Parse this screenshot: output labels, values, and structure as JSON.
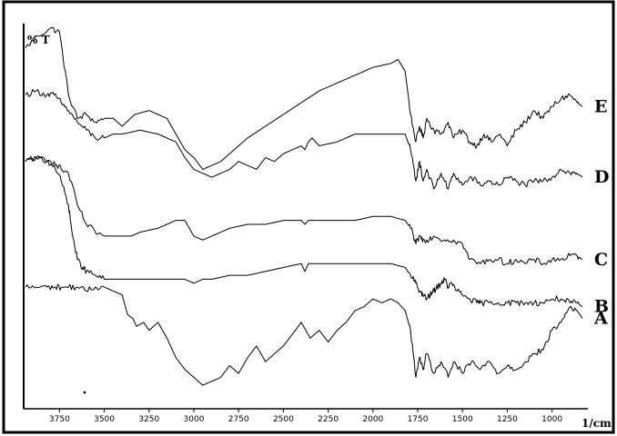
{
  "chart_data": {
    "type": "line",
    "title": "",
    "xlabel": "1/cm",
    "ylabel": "% T",
    "x_reversed": true,
    "xlim": [
      3950,
      800
    ],
    "x_ticks": [
      3750,
      3500,
      3250,
      3000,
      2750,
      2500,
      2250,
      2000,
      1750,
      1500,
      1250,
      1000
    ],
    "x_tick_labels": [
      "3750",
      "3500",
      "3250",
      "3000",
      "2750",
      "2500",
      "2250",
      "2000",
      "1750",
      "1500",
      "1250",
      "1000"
    ],
    "ylim": [
      0,
      100
    ],
    "grid": false,
    "legend": "labels at right end of each trace",
    "series": [
      {
        "name": "E",
        "color": "#000000",
        "points": [
          [
            3940,
            92
          ],
          [
            3870,
            95
          ],
          [
            3800,
            97
          ],
          [
            3750,
            96
          ],
          [
            3700,
            80
          ],
          [
            3650,
            74
          ],
          [
            3600,
            75
          ],
          [
            3550,
            73
          ],
          [
            3500,
            74
          ],
          [
            3450,
            74
          ],
          [
            3400,
            72
          ],
          [
            3330,
            75
          ],
          [
            3250,
            76
          ],
          [
            3150,
            74
          ],
          [
            3050,
            66
          ],
          [
            3000,
            64
          ],
          [
            2950,
            61
          ],
          [
            2900,
            62
          ],
          [
            2850,
            63
          ],
          [
            2800,
            65
          ],
          [
            2750,
            67
          ],
          [
            2700,
            69
          ],
          [
            2600,
            72
          ],
          [
            2500,
            75
          ],
          [
            2400,
            78
          ],
          [
            2300,
            81
          ],
          [
            2200,
            83
          ],
          [
            2100,
            85
          ],
          [
            2000,
            87
          ],
          [
            1900,
            88
          ],
          [
            1860,
            89
          ],
          [
            1820,
            86
          ],
          [
            1790,
            75
          ],
          [
            1760,
            68
          ],
          [
            1740,
            72
          ],
          [
            1720,
            69
          ],
          [
            1700,
            74
          ],
          [
            1660,
            71
          ],
          [
            1620,
            70
          ],
          [
            1580,
            73
          ],
          [
            1550,
            69
          ],
          [
            1500,
            71
          ],
          [
            1460,
            68
          ],
          [
            1420,
            67
          ],
          [
            1380,
            70
          ],
          [
            1340,
            68
          ],
          [
            1290,
            70
          ],
          [
            1250,
            67
          ],
          [
            1200,
            71
          ],
          [
            1150,
            73
          ],
          [
            1100,
            76
          ],
          [
            1050,
            74
          ],
          [
            1000,
            77
          ],
          [
            950,
            79
          ],
          [
            900,
            80
          ],
          [
            860,
            78
          ],
          [
            830,
            77
          ]
        ]
      },
      {
        "name": "D",
        "color": "#000000",
        "points": [
          [
            3940,
            80
          ],
          [
            3880,
            81
          ],
          [
            3820,
            80
          ],
          [
            3780,
            80
          ],
          [
            3740,
            78
          ],
          [
            3700,
            76
          ],
          [
            3650,
            73
          ],
          [
            3600,
            71
          ],
          [
            3550,
            69
          ],
          [
            3500,
            69
          ],
          [
            3450,
            70
          ],
          [
            3400,
            70
          ],
          [
            3300,
            71
          ],
          [
            3200,
            70
          ],
          [
            3100,
            68
          ],
          [
            3050,
            64
          ],
          [
            3000,
            61
          ],
          [
            2950,
            60
          ],
          [
            2900,
            59
          ],
          [
            2850,
            60
          ],
          [
            2800,
            61
          ],
          [
            2750,
            63
          ],
          [
            2700,
            62
          ],
          [
            2650,
            61
          ],
          [
            2600,
            64
          ],
          [
            2550,
            63
          ],
          [
            2500,
            65
          ],
          [
            2450,
            66
          ],
          [
            2400,
            67
          ],
          [
            2380,
            66
          ],
          [
            2360,
            68
          ],
          [
            2340,
            69
          ],
          [
            2300,
            67
          ],
          [
            2200,
            68
          ],
          [
            2100,
            70
          ],
          [
            2000,
            70
          ],
          [
            1900,
            70
          ],
          [
            1820,
            70
          ],
          [
            1790,
            66
          ],
          [
            1760,
            58
          ],
          [
            1740,
            63
          ],
          [
            1720,
            58
          ],
          [
            1700,
            61
          ],
          [
            1660,
            56
          ],
          [
            1620,
            60
          ],
          [
            1580,
            56
          ],
          [
            1550,
            60
          ],
          [
            1500,
            57
          ],
          [
            1450,
            59
          ],
          [
            1400,
            57
          ],
          [
            1350,
            58
          ],
          [
            1300,
            57
          ],
          [
            1250,
            59
          ],
          [
            1200,
            58
          ],
          [
            1150,
            57
          ],
          [
            1100,
            58
          ],
          [
            1050,
            58
          ],
          [
            1000,
            59
          ],
          [
            950,
            61
          ],
          [
            900,
            60
          ],
          [
            860,
            60
          ],
          [
            830,
            59
          ]
        ]
      },
      {
        "name": "C",
        "color": "#000000",
        "points": [
          [
            3940,
            63
          ],
          [
            3880,
            64
          ],
          [
            3820,
            63
          ],
          [
            3780,
            63
          ],
          [
            3740,
            61
          ],
          [
            3700,
            60
          ],
          [
            3650,
            52
          ],
          [
            3600,
            47
          ],
          [
            3550,
            45
          ],
          [
            3500,
            44
          ],
          [
            3450,
            44
          ],
          [
            3400,
            44
          ],
          [
            3350,
            44
          ],
          [
            3300,
            45
          ],
          [
            3200,
            46
          ],
          [
            3100,
            48
          ],
          [
            3050,
            48
          ],
          [
            3000,
            44
          ],
          [
            2950,
            43
          ],
          [
            2900,
            44
          ],
          [
            2850,
            45
          ],
          [
            2800,
            46
          ],
          [
            2700,
            47
          ],
          [
            2600,
            47
          ],
          [
            2500,
            48
          ],
          [
            2400,
            48
          ],
          [
            2380,
            47
          ],
          [
            2360,
            48
          ],
          [
            2300,
            48
          ],
          [
            2200,
            48
          ],
          [
            2100,
            48
          ],
          [
            2000,
            49
          ],
          [
            1900,
            49
          ],
          [
            1820,
            48
          ],
          [
            1790,
            46
          ],
          [
            1760,
            42
          ],
          [
            1740,
            44
          ],
          [
            1720,
            43
          ],
          [
            1700,
            43
          ],
          [
            1660,
            44
          ],
          [
            1600,
            43
          ],
          [
            1550,
            43
          ],
          [
            1500,
            42
          ],
          [
            1460,
            38
          ],
          [
            1400,
            37
          ],
          [
            1350,
            38
          ],
          [
            1300,
            38
          ],
          [
            1250,
            37
          ],
          [
            1200,
            38
          ],
          [
            1150,
            37
          ],
          [
            1100,
            38
          ],
          [
            1050,
            37
          ],
          [
            1000,
            38
          ],
          [
            950,
            38
          ],
          [
            900,
            39
          ],
          [
            860,
            39
          ],
          [
            830,
            38
          ]
        ]
      },
      {
        "name": "B",
        "color": "#000000",
        "points": [
          [
            3940,
            63
          ],
          [
            3880,
            64
          ],
          [
            3820,
            63
          ],
          [
            3780,
            62
          ],
          [
            3740,
            58
          ],
          [
            3700,
            52
          ],
          [
            3680,
            45
          ],
          [
            3650,
            38
          ],
          [
            3620,
            36
          ],
          [
            3600,
            35
          ],
          [
            3550,
            34
          ],
          [
            3500,
            33
          ],
          [
            3450,
            33
          ],
          [
            3400,
            33
          ],
          [
            3300,
            33
          ],
          [
            3200,
            33
          ],
          [
            3100,
            33
          ],
          [
            3050,
            33
          ],
          [
            3000,
            32
          ],
          [
            2950,
            33
          ],
          [
            2900,
            33
          ],
          [
            2800,
            34
          ],
          [
            2700,
            34
          ],
          [
            2600,
            35
          ],
          [
            2500,
            36
          ],
          [
            2400,
            37
          ],
          [
            2380,
            35
          ],
          [
            2360,
            37
          ],
          [
            2300,
            37
          ],
          [
            2200,
            37
          ],
          [
            2100,
            37
          ],
          [
            2000,
            37
          ],
          [
            1900,
            37
          ],
          [
            1820,
            36
          ],
          [
            1790,
            34
          ],
          [
            1760,
            32
          ],
          [
            1740,
            30
          ],
          [
            1720,
            29
          ],
          [
            1700,
            28
          ],
          [
            1680,
            29
          ],
          [
            1660,
            30
          ],
          [
            1640,
            31
          ],
          [
            1620,
            32
          ],
          [
            1600,
            33
          ],
          [
            1580,
            31
          ],
          [
            1560,
            32
          ],
          [
            1530,
            30
          ],
          [
            1500,
            29
          ],
          [
            1460,
            28
          ],
          [
            1420,
            27
          ],
          [
            1400,
            27
          ],
          [
            1350,
            27
          ],
          [
            1300,
            27
          ],
          [
            1250,
            27
          ],
          [
            1200,
            27
          ],
          [
            1150,
            27
          ],
          [
            1100,
            27
          ],
          [
            1050,
            27
          ],
          [
            1000,
            28
          ],
          [
            950,
            28
          ],
          [
            900,
            27
          ],
          [
            860,
            27
          ],
          [
            830,
            26
          ]
        ]
      },
      {
        "name": "A",
        "color": "#000000",
        "points": [
          [
            3940,
            31
          ],
          [
            3880,
            31
          ],
          [
            3820,
            31
          ],
          [
            3780,
            31
          ],
          [
            3740,
            31
          ],
          [
            3700,
            31
          ],
          [
            3650,
            31
          ],
          [
            3600,
            30
          ],
          [
            3550,
            31
          ],
          [
            3500,
            31
          ],
          [
            3450,
            30
          ],
          [
            3400,
            29
          ],
          [
            3370,
            24
          ],
          [
            3340,
            23
          ],
          [
            3320,
            21
          ],
          [
            3280,
            22
          ],
          [
            3250,
            20
          ],
          [
            3200,
            22
          ],
          [
            3150,
            18
          ],
          [
            3100,
            13
          ],
          [
            3050,
            10
          ],
          [
            3000,
            8
          ],
          [
            2950,
            6
          ],
          [
            2900,
            7
          ],
          [
            2850,
            8
          ],
          [
            2800,
            11
          ],
          [
            2750,
            9
          ],
          [
            2700,
            13
          ],
          [
            2650,
            16
          ],
          [
            2600,
            12
          ],
          [
            2550,
            14
          ],
          [
            2500,
            16
          ],
          [
            2450,
            19
          ],
          [
            2400,
            22
          ],
          [
            2350,
            18
          ],
          [
            2300,
            20
          ],
          [
            2250,
            17
          ],
          [
            2200,
            20
          ],
          [
            2150,
            22
          ],
          [
            2100,
            25
          ],
          [
            2050,
            26
          ],
          [
            2000,
            28
          ],
          [
            1950,
            27
          ],
          [
            1900,
            28
          ],
          [
            1860,
            27
          ],
          [
            1820,
            25
          ],
          [
            1790,
            20
          ],
          [
            1760,
            8
          ],
          [
            1740,
            13
          ],
          [
            1720,
            10
          ],
          [
            1700,
            14
          ],
          [
            1660,
            9
          ],
          [
            1620,
            12
          ],
          [
            1580,
            8
          ],
          [
            1550,
            12
          ],
          [
            1500,
            9
          ],
          [
            1450,
            12
          ],
          [
            1400,
            10
          ],
          [
            1350,
            12
          ],
          [
            1300,
            9
          ],
          [
            1250,
            11
          ],
          [
            1200,
            10
          ],
          [
            1150,
            12
          ],
          [
            1100,
            14
          ],
          [
            1050,
            15
          ],
          [
            1000,
            20
          ],
          [
            950,
            22
          ],
          [
            900,
            26
          ],
          [
            860,
            25
          ],
          [
            830,
            23
          ]
        ]
      }
    ]
  }
}
